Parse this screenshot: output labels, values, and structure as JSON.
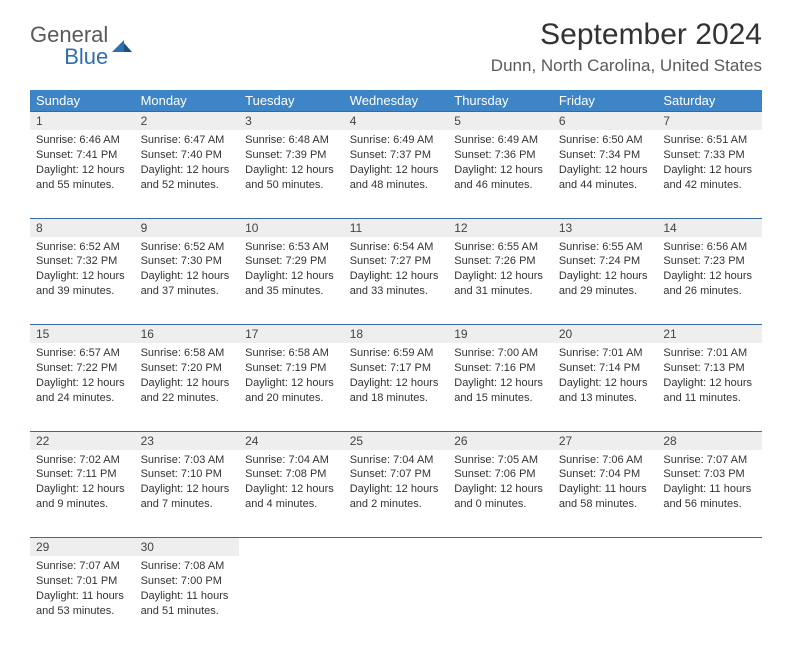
{
  "logo": {
    "line1": "General",
    "line2": "Blue"
  },
  "title": "September 2024",
  "location": "Dunn, North Carolina, United States",
  "weekdays": [
    "Sunday",
    "Monday",
    "Tuesday",
    "Wednesday",
    "Thursday",
    "Friday",
    "Saturday"
  ],
  "header_bg": "#3d85c6",
  "daynum_bg": "#eeeeee",
  "border_color": "#3a6a9a",
  "text_color": "#333333",
  "weeks": [
    {
      "days": [
        {
          "n": "1",
          "sunrise": "Sunrise: 6:46 AM",
          "sunset": "Sunset: 7:41 PM",
          "daylight": "Daylight: 12 hours and 55 minutes."
        },
        {
          "n": "2",
          "sunrise": "Sunrise: 6:47 AM",
          "sunset": "Sunset: 7:40 PM",
          "daylight": "Daylight: 12 hours and 52 minutes."
        },
        {
          "n": "3",
          "sunrise": "Sunrise: 6:48 AM",
          "sunset": "Sunset: 7:39 PM",
          "daylight": "Daylight: 12 hours and 50 minutes."
        },
        {
          "n": "4",
          "sunrise": "Sunrise: 6:49 AM",
          "sunset": "Sunset: 7:37 PM",
          "daylight": "Daylight: 12 hours and 48 minutes."
        },
        {
          "n": "5",
          "sunrise": "Sunrise: 6:49 AM",
          "sunset": "Sunset: 7:36 PM",
          "daylight": "Daylight: 12 hours and 46 minutes."
        },
        {
          "n": "6",
          "sunrise": "Sunrise: 6:50 AM",
          "sunset": "Sunset: 7:34 PM",
          "daylight": "Daylight: 12 hours and 44 minutes."
        },
        {
          "n": "7",
          "sunrise": "Sunrise: 6:51 AM",
          "sunset": "Sunset: 7:33 PM",
          "daylight": "Daylight: 12 hours and 42 minutes."
        }
      ]
    },
    {
      "days": [
        {
          "n": "8",
          "sunrise": "Sunrise: 6:52 AM",
          "sunset": "Sunset: 7:32 PM",
          "daylight": "Daylight: 12 hours and 39 minutes."
        },
        {
          "n": "9",
          "sunrise": "Sunrise: 6:52 AM",
          "sunset": "Sunset: 7:30 PM",
          "daylight": "Daylight: 12 hours and 37 minutes."
        },
        {
          "n": "10",
          "sunrise": "Sunrise: 6:53 AM",
          "sunset": "Sunset: 7:29 PM",
          "daylight": "Daylight: 12 hours and 35 minutes."
        },
        {
          "n": "11",
          "sunrise": "Sunrise: 6:54 AM",
          "sunset": "Sunset: 7:27 PM",
          "daylight": "Daylight: 12 hours and 33 minutes."
        },
        {
          "n": "12",
          "sunrise": "Sunrise: 6:55 AM",
          "sunset": "Sunset: 7:26 PM",
          "daylight": "Daylight: 12 hours and 31 minutes."
        },
        {
          "n": "13",
          "sunrise": "Sunrise: 6:55 AM",
          "sunset": "Sunset: 7:24 PM",
          "daylight": "Daylight: 12 hours and 29 minutes."
        },
        {
          "n": "14",
          "sunrise": "Sunrise: 6:56 AM",
          "sunset": "Sunset: 7:23 PM",
          "daylight": "Daylight: 12 hours and 26 minutes."
        }
      ]
    },
    {
      "days": [
        {
          "n": "15",
          "sunrise": "Sunrise: 6:57 AM",
          "sunset": "Sunset: 7:22 PM",
          "daylight": "Daylight: 12 hours and 24 minutes."
        },
        {
          "n": "16",
          "sunrise": "Sunrise: 6:58 AM",
          "sunset": "Sunset: 7:20 PM",
          "daylight": "Daylight: 12 hours and 22 minutes."
        },
        {
          "n": "17",
          "sunrise": "Sunrise: 6:58 AM",
          "sunset": "Sunset: 7:19 PM",
          "daylight": "Daylight: 12 hours and 20 minutes."
        },
        {
          "n": "18",
          "sunrise": "Sunrise: 6:59 AM",
          "sunset": "Sunset: 7:17 PM",
          "daylight": "Daylight: 12 hours and 18 minutes."
        },
        {
          "n": "19",
          "sunrise": "Sunrise: 7:00 AM",
          "sunset": "Sunset: 7:16 PM",
          "daylight": "Daylight: 12 hours and 15 minutes."
        },
        {
          "n": "20",
          "sunrise": "Sunrise: 7:01 AM",
          "sunset": "Sunset: 7:14 PM",
          "daylight": "Daylight: 12 hours and 13 minutes."
        },
        {
          "n": "21",
          "sunrise": "Sunrise: 7:01 AM",
          "sunset": "Sunset: 7:13 PM",
          "daylight": "Daylight: 12 hours and 11 minutes."
        }
      ]
    },
    {
      "days": [
        {
          "n": "22",
          "sunrise": "Sunrise: 7:02 AM",
          "sunset": "Sunset: 7:11 PM",
          "daylight": "Daylight: 12 hours and 9 minutes."
        },
        {
          "n": "23",
          "sunrise": "Sunrise: 7:03 AM",
          "sunset": "Sunset: 7:10 PM",
          "daylight": "Daylight: 12 hours and 7 minutes."
        },
        {
          "n": "24",
          "sunrise": "Sunrise: 7:04 AM",
          "sunset": "Sunset: 7:08 PM",
          "daylight": "Daylight: 12 hours and 4 minutes."
        },
        {
          "n": "25",
          "sunrise": "Sunrise: 7:04 AM",
          "sunset": "Sunset: 7:07 PM",
          "daylight": "Daylight: 12 hours and 2 minutes."
        },
        {
          "n": "26",
          "sunrise": "Sunrise: 7:05 AM",
          "sunset": "Sunset: 7:06 PM",
          "daylight": "Daylight: 12 hours and 0 minutes."
        },
        {
          "n": "27",
          "sunrise": "Sunrise: 7:06 AM",
          "sunset": "Sunset: 7:04 PM",
          "daylight": "Daylight: 11 hours and 58 minutes."
        },
        {
          "n": "28",
          "sunrise": "Sunrise: 7:07 AM",
          "sunset": "Sunset: 7:03 PM",
          "daylight": "Daylight: 11 hours and 56 minutes."
        }
      ]
    },
    {
      "days": [
        {
          "n": "29",
          "sunrise": "Sunrise: 7:07 AM",
          "sunset": "Sunset: 7:01 PM",
          "daylight": "Daylight: 11 hours and 53 minutes."
        },
        {
          "n": "30",
          "sunrise": "Sunrise: 7:08 AM",
          "sunset": "Sunset: 7:00 PM",
          "daylight": "Daylight: 11 hours and 51 minutes."
        },
        null,
        null,
        null,
        null,
        null
      ]
    }
  ]
}
